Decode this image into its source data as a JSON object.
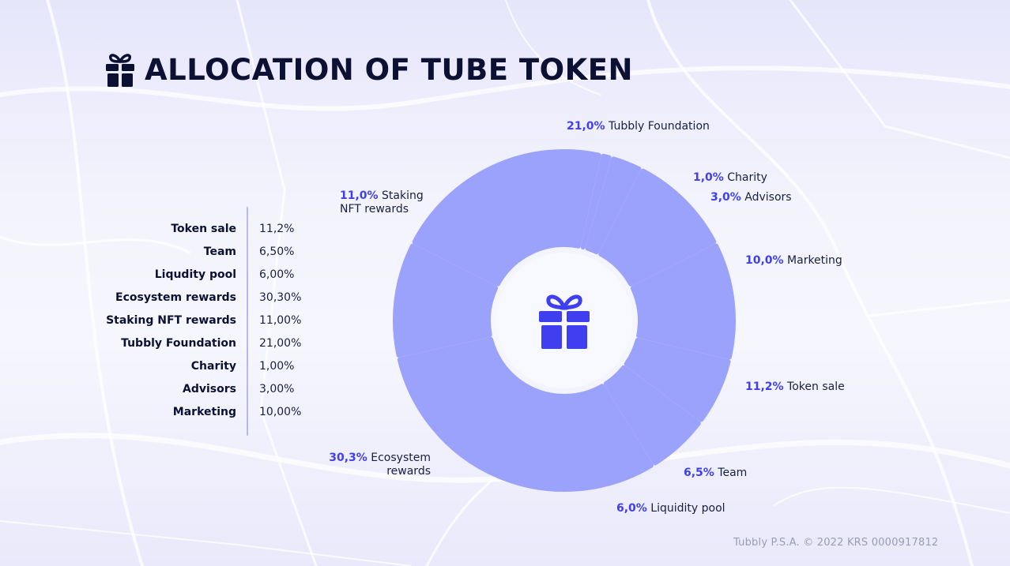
{
  "title": "ALLOCATION OF TUBE TOKEN",
  "colors": {
    "accent": "#3f3ff0",
    "slice": "#9ba2fb",
    "dark": "#0c1133"
  },
  "icons": {
    "title_icon": "gift-icon",
    "center_icon": "gift-icon"
  },
  "table": [
    {
      "label": "Token sale",
      "value": "11,2%"
    },
    {
      "label": "Team",
      "value": "6,50%"
    },
    {
      "label": "Liqudity pool",
      "value": "6,00%"
    },
    {
      "label": "Ecosystem rewards",
      "value": "30,30%"
    },
    {
      "label": "Staking NFT rewards",
      "value": "11,00%"
    },
    {
      "label": "Tubbly Foundation",
      "value": "21,00%"
    },
    {
      "label": "Charity",
      "value": "1,00%"
    },
    {
      "label": "Advisors",
      "value": "3,00%"
    },
    {
      "label": "Marketing",
      "value": "10,00%"
    }
  ],
  "chart_data": {
    "type": "pie",
    "title": "",
    "slices": [
      {
        "name": "Tubbly Foundation",
        "value": 21.0,
        "pct_label": "21,0%",
        "label_line1": "Tubbly Foundation",
        "label_line2": ""
      },
      {
        "name": "Charity",
        "value": 1.0,
        "pct_label": "1,0%",
        "label_line1": "Charity",
        "label_line2": ""
      },
      {
        "name": "Advisors",
        "value": 3.0,
        "pct_label": "3,0%",
        "label_line1": "Advisors",
        "label_line2": ""
      },
      {
        "name": "Marketing",
        "value": 10.0,
        "pct_label": "10,0%",
        "label_line1": "Marketing",
        "label_line2": ""
      },
      {
        "name": "Token sale",
        "value": 11.2,
        "pct_label": "11,2%",
        "label_line1": "Token sale",
        "label_line2": ""
      },
      {
        "name": "Team",
        "value": 6.5,
        "pct_label": "6,5%",
        "label_line1": "Team",
        "label_line2": ""
      },
      {
        "name": "Liquidity pool",
        "value": 6.0,
        "pct_label": "6,0%",
        "label_line1": "Liquidity pool",
        "label_line2": ""
      },
      {
        "name": "Ecosystem rewards",
        "value": 30.3,
        "pct_label": "30,3%",
        "label_line1": "Ecosystem",
        "label_line2": "rewards"
      },
      {
        "name": "Staking NFT rewards",
        "value": 11.0,
        "pct_label": "11,0%",
        "label_line1": "Staking",
        "label_line2": "NFT rewards"
      }
    ]
  },
  "footer": "Tubbly P.S.A. © 2022  KRS 0000917812"
}
